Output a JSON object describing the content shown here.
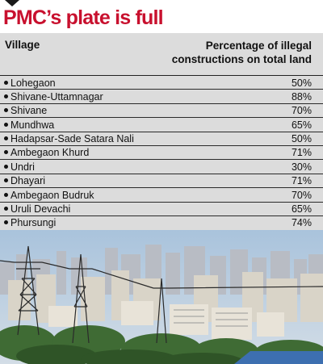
{
  "headline": "PMC’s plate is full",
  "table": {
    "col_village": "Village",
    "col_pct_line1": "Percentage of illegal",
    "col_pct_line2": "constructions on total land",
    "rows": [
      {
        "village": "Lohegaon",
        "pct": "50%"
      },
      {
        "village": "Shivane-Uttamnagar",
        "pct": "88%"
      },
      {
        "village": "Shivane",
        "pct": "70%"
      },
      {
        "village": "Mundhwa",
        "pct": "65%"
      },
      {
        "village": "Hadapsar-Sade Satara Nali",
        "pct": "50%"
      },
      {
        "village": "Ambegaon Khurd",
        "pct": "71%"
      },
      {
        "village": "Undri",
        "pct": "30%"
      },
      {
        "village": "Dhayari",
        "pct": "71%"
      },
      {
        "village": "Ambegaon Budruk",
        "pct": "70%"
      },
      {
        "village": "Uruli Devachi",
        "pct": "65%"
      },
      {
        "village": "Phursungi",
        "pct": "74%"
      }
    ]
  },
  "colors": {
    "headline": "#c8102e",
    "table_bg": "#dcdcdc",
    "sky": "#b9cfe3"
  },
  "photo": {
    "subject": "city skyline with power transmission towers"
  }
}
